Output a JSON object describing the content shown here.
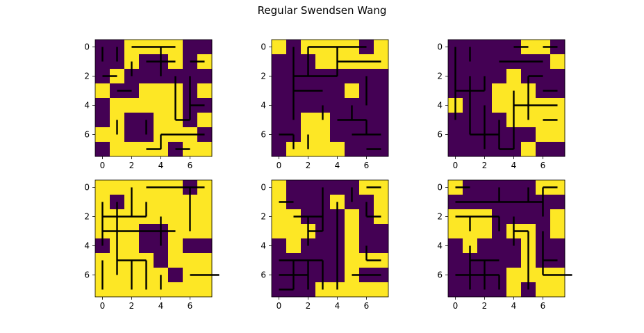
{
  "title": "Regular Swendsen Wang",
  "colors": {
    "low": "#440154",
    "high": "#fde725",
    "bond": "#000000"
  },
  "chart_data": [
    {
      "type": "heatmap",
      "grid": [
        [
          0,
          0,
          1,
          1,
          1,
          1,
          0,
          0
        ],
        [
          0,
          0,
          1,
          0,
          0,
          1,
          0,
          1
        ],
        [
          0,
          1,
          0,
          0,
          0,
          0,
          0,
          0
        ],
        [
          1,
          0,
          0,
          1,
          1,
          1,
          0,
          1
        ],
        [
          0,
          1,
          1,
          1,
          1,
          1,
          0,
          0
        ],
        [
          0,
          1,
          0,
          0,
          1,
          1,
          0,
          1
        ],
        [
          1,
          1,
          0,
          0,
          1,
          1,
          1,
          0
        ],
        [
          0,
          1,
          1,
          1,
          1,
          0,
          1,
          1
        ]
      ],
      "hbonds": [
        [
          0,
          2
        ],
        [
          0,
          3
        ],
        [
          0,
          4
        ],
        [
          1,
          3
        ],
        [
          1,
          4
        ],
        [
          2,
          0
        ],
        [
          3,
          1
        ],
        [
          7,
          3
        ],
        [
          6,
          4
        ],
        [
          5,
          5
        ],
        [
          4,
          6
        ],
        [
          1,
          6
        ],
        [
          6,
          5
        ],
        [
          7,
          5
        ],
        [
          6,
          6
        ]
      ],
      "vbonds": [
        [
          0,
          0
        ],
        [
          0,
          1
        ],
        [
          0,
          4
        ],
        [
          1,
          4
        ],
        [
          1,
          2
        ],
        [
          2,
          5
        ],
        [
          3,
          5
        ],
        [
          4,
          5
        ],
        [
          2,
          6
        ],
        [
          3,
          6
        ],
        [
          4,
          6
        ],
        [
          5,
          1
        ],
        [
          5,
          3
        ],
        [
          6,
          4
        ]
      ],
      "xticks": [
        "0",
        "2",
        "4",
        "6"
      ],
      "yticks": [
        "0",
        "2",
        "4",
        "6"
      ]
    },
    {
      "type": "heatmap",
      "grid": [
        [
          1,
          0,
          1,
          1,
          1,
          1,
          0,
          1
        ],
        [
          0,
          0,
          0,
          1,
          1,
          1,
          1,
          1
        ],
        [
          0,
          0,
          0,
          0,
          0,
          0,
          0,
          0
        ],
        [
          0,
          0,
          0,
          0,
          0,
          1,
          0,
          0
        ],
        [
          0,
          0,
          0,
          0,
          0,
          0,
          0,
          0
        ],
        [
          0,
          0,
          1,
          1,
          0,
          0,
          0,
          0
        ],
        [
          0,
          0,
          1,
          1,
          0,
          0,
          0,
          0
        ],
        [
          0,
          1,
          1,
          1,
          1,
          0,
          0,
          0
        ]
      ],
      "hbonds": [
        [
          0,
          2
        ],
        [
          0,
          3
        ],
        [
          0,
          4
        ],
        [
          0,
          5
        ],
        [
          2,
          1
        ],
        [
          2,
          2
        ],
        [
          2,
          3
        ],
        [
          1,
          4
        ],
        [
          1,
          5
        ],
        [
          1,
          6
        ],
        [
          5,
          4
        ],
        [
          5,
          5
        ],
        [
          6,
          0
        ],
        [
          6,
          5
        ],
        [
          6,
          6
        ],
        [
          7,
          6
        ],
        [
          3,
          1
        ],
        [
          3,
          2
        ]
      ],
      "vbonds": [
        [
          0,
          1
        ],
        [
          1,
          1
        ],
        [
          2,
          1
        ],
        [
          3,
          1
        ],
        [
          4,
          1
        ],
        [
          0,
          2
        ],
        [
          1,
          2
        ],
        [
          0,
          4
        ],
        [
          1,
          4
        ],
        [
          2,
          6
        ],
        [
          3,
          6
        ],
        [
          4,
          3
        ],
        [
          5,
          6
        ],
        [
          6,
          2
        ],
        [
          6,
          1
        ],
        [
          4,
          5
        ]
      ],
      "xticks": [
        "0",
        "2",
        "4",
        "6"
      ],
      "yticks": [
        "0",
        "2",
        "4",
        "6"
      ]
    },
    {
      "type": "heatmap",
      "grid": [
        [
          0,
          0,
          0,
          0,
          0,
          1,
          1,
          0
        ],
        [
          0,
          0,
          0,
          0,
          0,
          0,
          0,
          1
        ],
        [
          0,
          0,
          0,
          0,
          1,
          0,
          0,
          0
        ],
        [
          0,
          0,
          0,
          1,
          1,
          1,
          0,
          0
        ],
        [
          1,
          0,
          0,
          1,
          1,
          1,
          1,
          1
        ],
        [
          0,
          0,
          0,
          0,
          1,
          1,
          1,
          1
        ],
        [
          0,
          0,
          0,
          0,
          0,
          0,
          1,
          1
        ],
        [
          0,
          0,
          0,
          0,
          0,
          1,
          0,
          0
        ]
      ],
      "hbonds": [
        [
          0,
          4
        ],
        [
          1,
          3
        ],
        [
          1,
          4
        ],
        [
          3,
          0
        ],
        [
          3,
          1
        ],
        [
          6,
          1
        ],
        [
          6,
          2
        ],
        [
          7,
          3
        ],
        [
          4,
          4
        ],
        [
          4,
          5
        ],
        [
          4,
          6
        ],
        [
          5,
          6
        ],
        [
          3,
          6
        ],
        [
          2,
          5
        ],
        [
          0,
          6
        ],
        [
          1,
          5
        ]
      ],
      "vbonds": [
        [
          0,
          0
        ],
        [
          1,
          0
        ],
        [
          2,
          0
        ],
        [
          3,
          0
        ],
        [
          4,
          0
        ],
        [
          0,
          1
        ],
        [
          2,
          1
        ],
        [
          3,
          1
        ],
        [
          4,
          1
        ],
        [
          5,
          1
        ],
        [
          2,
          2
        ],
        [
          4,
          2
        ],
        [
          5,
          2
        ],
        [
          6,
          2
        ],
        [
          5,
          3
        ],
        [
          6,
          3
        ],
        [
          3,
          4
        ],
        [
          4,
          4
        ],
        [
          5,
          4
        ],
        [
          6,
          4
        ],
        [
          2,
          5
        ],
        [
          3,
          5
        ],
        [
          4,
          5
        ]
      ],
      "xticks": [
        "0",
        "2",
        "4",
        "6"
      ],
      "yticks": [
        "0",
        "2",
        "4",
        "6"
      ]
    },
    {
      "type": "heatmap",
      "grid": [
        [
          1,
          1,
          1,
          1,
          1,
          1,
          0,
          1
        ],
        [
          1,
          0,
          1,
          1,
          1,
          1,
          1,
          1
        ],
        [
          1,
          1,
          1,
          1,
          1,
          1,
          1,
          1
        ],
        [
          1,
          1,
          1,
          0,
          0,
          1,
          1,
          1
        ],
        [
          0,
          1,
          1,
          0,
          0,
          1,
          0,
          0
        ],
        [
          1,
          1,
          1,
          1,
          0,
          1,
          1,
          1
        ],
        [
          1,
          1,
          1,
          1,
          1,
          0,
          1,
          1
        ],
        [
          1,
          1,
          1,
          1,
          1,
          1,
          1,
          1
        ]
      ],
      "hbonds": [
        [
          0,
          3
        ],
        [
          0,
          4
        ],
        [
          0,
          5
        ],
        [
          2,
          0
        ],
        [
          2,
          1
        ],
        [
          2,
          2
        ],
        [
          3,
          0
        ],
        [
          3,
          1
        ],
        [
          3,
          2
        ],
        [
          3,
          3
        ],
        [
          3,
          4
        ],
        [
          5,
          1
        ],
        [
          5,
          2
        ],
        [
          6,
          6
        ],
        [
          6,
          7
        ],
        [
          0,
          6
        ]
      ],
      "vbonds": [
        [
          0,
          2
        ],
        [
          1,
          2
        ],
        [
          1,
          3
        ],
        [
          2,
          6
        ],
        [
          0,
          6
        ],
        [
          1,
          6
        ],
        [
          2,
          4
        ],
        [
          3,
          4
        ],
        [
          1,
          0
        ],
        [
          2,
          0
        ],
        [
          3,
          0
        ],
        [
          2,
          1
        ],
        [
          3,
          1
        ],
        [
          4,
          1
        ],
        [
          5,
          0
        ],
        [
          6,
          0
        ],
        [
          5,
          1
        ],
        [
          6,
          2
        ],
        [
          5,
          2
        ],
        [
          6,
          3
        ],
        [
          5,
          3
        ],
        [
          6,
          4
        ],
        [
          1,
          1
        ]
      ],
      "xticks": [
        "0",
        "2",
        "4",
        "6"
      ],
      "yticks": [
        "0",
        "2",
        "4",
        "6"
      ]
    },
    {
      "type": "heatmap",
      "grid": [
        [
          1,
          0,
          0,
          0,
          0,
          0,
          1,
          1
        ],
        [
          1,
          0,
          0,
          0,
          1,
          0,
          0,
          1
        ],
        [
          1,
          1,
          0,
          0,
          0,
          1,
          0,
          1
        ],
        [
          1,
          1,
          1,
          0,
          0,
          1,
          0,
          0
        ],
        [
          0,
          1,
          0,
          0,
          0,
          1,
          0,
          0
        ],
        [
          0,
          0,
          0,
          0,
          0,
          1,
          1,
          1
        ],
        [
          0,
          0,
          0,
          0,
          0,
          1,
          0,
          0
        ],
        [
          0,
          0,
          0,
          1,
          1,
          1,
          1,
          1
        ]
      ],
      "hbonds": [
        [
          0,
          6
        ],
        [
          1,
          0
        ],
        [
          2,
          1
        ],
        [
          2,
          2
        ],
        [
          3,
          2
        ],
        [
          5,
          0
        ],
        [
          5,
          1
        ],
        [
          5,
          2
        ],
        [
          6,
          0
        ],
        [
          6,
          1
        ],
        [
          7,
          0
        ],
        [
          6,
          5
        ],
        [
          6,
          6
        ],
        [
          5,
          6
        ],
        [
          2,
          6
        ]
      ],
      "vbonds": [
        [
          0,
          3
        ],
        [
          1,
          3
        ],
        [
          2,
          3
        ],
        [
          0,
          5
        ],
        [
          1,
          6
        ],
        [
          2,
          2
        ],
        [
          3,
          2
        ],
        [
          5,
          1
        ],
        [
          6,
          1
        ],
        [
          5,
          2
        ],
        [
          6,
          2
        ],
        [
          1,
          4
        ],
        [
          2,
          4
        ],
        [
          3,
          4
        ],
        [
          4,
          4
        ],
        [
          5,
          4
        ],
        [
          6,
          4
        ],
        [
          4,
          6
        ],
        [
          5,
          3
        ],
        [
          6,
          3
        ]
      ],
      "xticks": [
        "0",
        "2",
        "4",
        "6"
      ],
      "yticks": [
        "0",
        "2",
        "4",
        "6"
      ]
    },
    {
      "type": "heatmap",
      "grid": [
        [
          1,
          0,
          0,
          0,
          0,
          0,
          1,
          1
        ],
        [
          0,
          0,
          0,
          0,
          0,
          0,
          0,
          0
        ],
        [
          1,
          1,
          1,
          0,
          0,
          0,
          0,
          1
        ],
        [
          1,
          1,
          1,
          0,
          1,
          1,
          0,
          1
        ],
        [
          0,
          1,
          0,
          0,
          0,
          1,
          0,
          0
        ],
        [
          0,
          0,
          0,
          0,
          0,
          1,
          0,
          0
        ],
        [
          0,
          0,
          0,
          0,
          1,
          1,
          1,
          1
        ],
        [
          0,
          0,
          0,
          0,
          1,
          0,
          1,
          1
        ]
      ],
      "hbonds": [
        [
          0,
          0
        ],
        [
          1,
          0
        ],
        [
          1,
          1
        ],
        [
          1,
          2
        ],
        [
          1,
          3
        ],
        [
          1,
          4
        ],
        [
          1,
          5
        ],
        [
          2,
          0
        ],
        [
          2,
          1
        ],
        [
          3,
          4
        ],
        [
          5,
          1
        ],
        [
          5,
          2
        ],
        [
          5,
          6
        ],
        [
          6,
          6
        ],
        [
          6,
          0
        ],
        [
          6,
          1
        ],
        [
          6,
          2
        ],
        [
          0,
          6
        ],
        [
          2,
          2
        ],
        [
          6,
          7
        ]
      ],
      "vbonds": [
        [
          0,
          3
        ],
        [
          0,
          5
        ],
        [
          0,
          6
        ],
        [
          1,
          6
        ],
        [
          2,
          1
        ],
        [
          2,
          3
        ],
        [
          3,
          5
        ],
        [
          4,
          5
        ],
        [
          5,
          5
        ],
        [
          3,
          6
        ],
        [
          4,
          6
        ],
        [
          5,
          6
        ],
        [
          4,
          1
        ],
        [
          5,
          1
        ],
        [
          6,
          1
        ],
        [
          5,
          2
        ],
        [
          6,
          2
        ],
        [
          6,
          3
        ],
        [
          2,
          4
        ],
        [
          3,
          4
        ],
        [
          6,
          5
        ]
      ],
      "xticks": [
        "0",
        "2",
        "4",
        "6"
      ],
      "yticks": [
        "0",
        "2",
        "4",
        "6"
      ]
    }
  ]
}
